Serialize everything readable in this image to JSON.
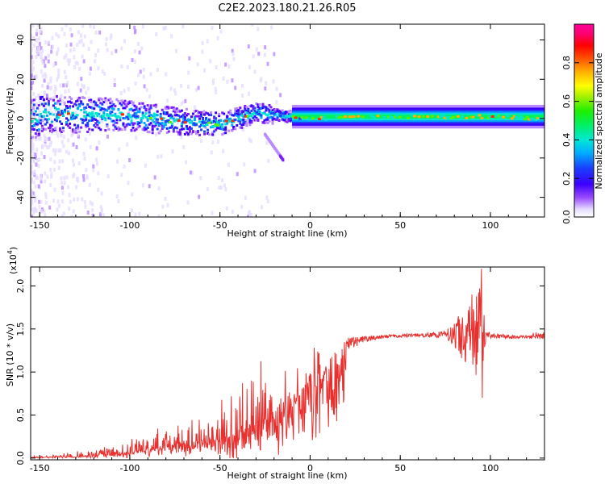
{
  "title": "C2E2.2023.180.21.26.R05",
  "chart_data": [
    {
      "type": "heatmap",
      "name": "spectrogram",
      "xlabel": "Height of straight line (km)",
      "ylabel": "Frequency (Hz)",
      "xlim": [
        -155,
        130
      ],
      "ylim": [
        -50,
        48
      ],
      "xticks": [
        "-150",
        "-100",
        "-50",
        "0",
        "50",
        "100"
      ],
      "xtick_values": [
        -150,
        -100,
        -50,
        0,
        50,
        100
      ],
      "yticks": [
        "-40",
        "-20",
        "0",
        "20",
        "40"
      ],
      "ytick_values": [
        -40,
        -20,
        0,
        20,
        40
      ],
      "ridge_center_hz": [
        [
          -150,
          3
        ],
        [
          -130,
          2
        ],
        [
          -110,
          2
        ],
        [
          -95,
          1
        ],
        [
          -80,
          -1
        ],
        [
          -65,
          -2
        ],
        [
          -50,
          -3
        ],
        [
          -40,
          0
        ],
        [
          -30,
          3
        ],
        [
          -20,
          2
        ],
        [
          -10,
          1
        ],
        [
          0,
          0
        ],
        [
          50,
          1
        ],
        [
          100,
          1
        ],
        [
          130,
          0
        ]
      ],
      "spur": {
        "x_start": -25,
        "x_end": -15,
        "hz_start": -8,
        "hz_end": -21
      },
      "colorbar": {
        "label": "Normalized spectral amplitude",
        "range": [
          0,
          1
        ],
        "ticks": [
          "0.0",
          "0.2",
          "0.4",
          "0.6",
          "0.8"
        ],
        "tick_values": [
          0,
          0.2,
          0.4,
          0.6,
          0.8
        ]
      }
    },
    {
      "type": "line",
      "name": "snr",
      "xlabel": "Height of straight line (km)",
      "ylabel": "SNR (10 * v/v)",
      "multiplier_label": "(x10",
      "multiplier_exp": "4",
      "xlim": [
        -155,
        130
      ],
      "ylim": [
        -0.02,
        2.22
      ],
      "xticks": [
        "-150",
        "-100",
        "-50",
        "0",
        "50",
        "100"
      ],
      "xtick_values": [
        -150,
        -100,
        -50,
        0,
        50,
        100
      ],
      "yticks": [
        "0.0",
        "0.5",
        "1.0",
        "1.5",
        "2.0"
      ],
      "ytick_values": [
        0,
        0.5,
        1.0,
        1.5,
        2.0
      ],
      "color": "#e8312f",
      "envelope": {
        "x": [
          -155,
          -120,
          -100,
          -80,
          -60,
          -50,
          -45,
          -40,
          -35,
          -30,
          -25,
          -20,
          -15,
          -10,
          -5,
          0,
          5,
          10,
          15,
          20,
          30,
          40,
          50,
          60,
          70,
          75,
          80,
          85,
          90,
          95,
          97,
          100,
          110,
          120,
          125,
          130
        ],
        "base": [
          0.01,
          0.04,
          0.1,
          0.18,
          0.26,
          0.32,
          0.36,
          0.38,
          0.42,
          0.47,
          0.54,
          0.62,
          0.7,
          0.82,
          0.93,
          1.02,
          1.1,
          1.18,
          1.26,
          1.32,
          1.38,
          1.41,
          1.42,
          1.43,
          1.43,
          1.44,
          1.44,
          1.43,
          1.42,
          1.4,
          1.42,
          1.42,
          1.41,
          1.41,
          1.42,
          1.42
        ],
        "jitter": [
          0.01,
          0.06,
          0.12,
          0.16,
          0.22,
          0.36,
          0.55,
          0.7,
          0.6,
          0.55,
          0.5,
          0.5,
          0.45,
          0.35,
          0.3,
          0.25,
          0.3,
          0.25,
          0.15,
          0.08,
          0.04,
          0.02,
          0.02,
          0.02,
          0.03,
          0.05,
          0.15,
          0.3,
          0.5,
          0.7,
          0.1,
          0.03,
          0.02,
          0.02,
          0.04,
          0.04
        ]
      },
      "peak": {
        "x": 95,
        "y": 2.2
      },
      "dip": {
        "x": 95.5,
        "y": 0.7
      }
    }
  ]
}
